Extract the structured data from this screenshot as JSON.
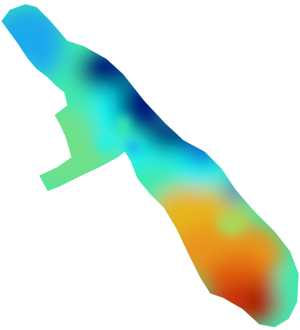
{
  "map": {
    "kind": "interpolated-surface",
    "colormap": "jet",
    "colors": {
      "background": "#ffffff",
      "dark_blue": "#00127a",
      "blue": "#0a4fd6",
      "light_blue": "#1aa8ee",
      "cyan": "#0ff2f2",
      "aqua_green": "#3de8b0",
      "green": "#6fe08a",
      "yellow_green": "#a8d85a",
      "yellow": "#e8b41a",
      "orange": "#e8941a",
      "dark_orange": "#e0600e",
      "red": "#c8300a",
      "dark_red": "#a81e06"
    }
  }
}
